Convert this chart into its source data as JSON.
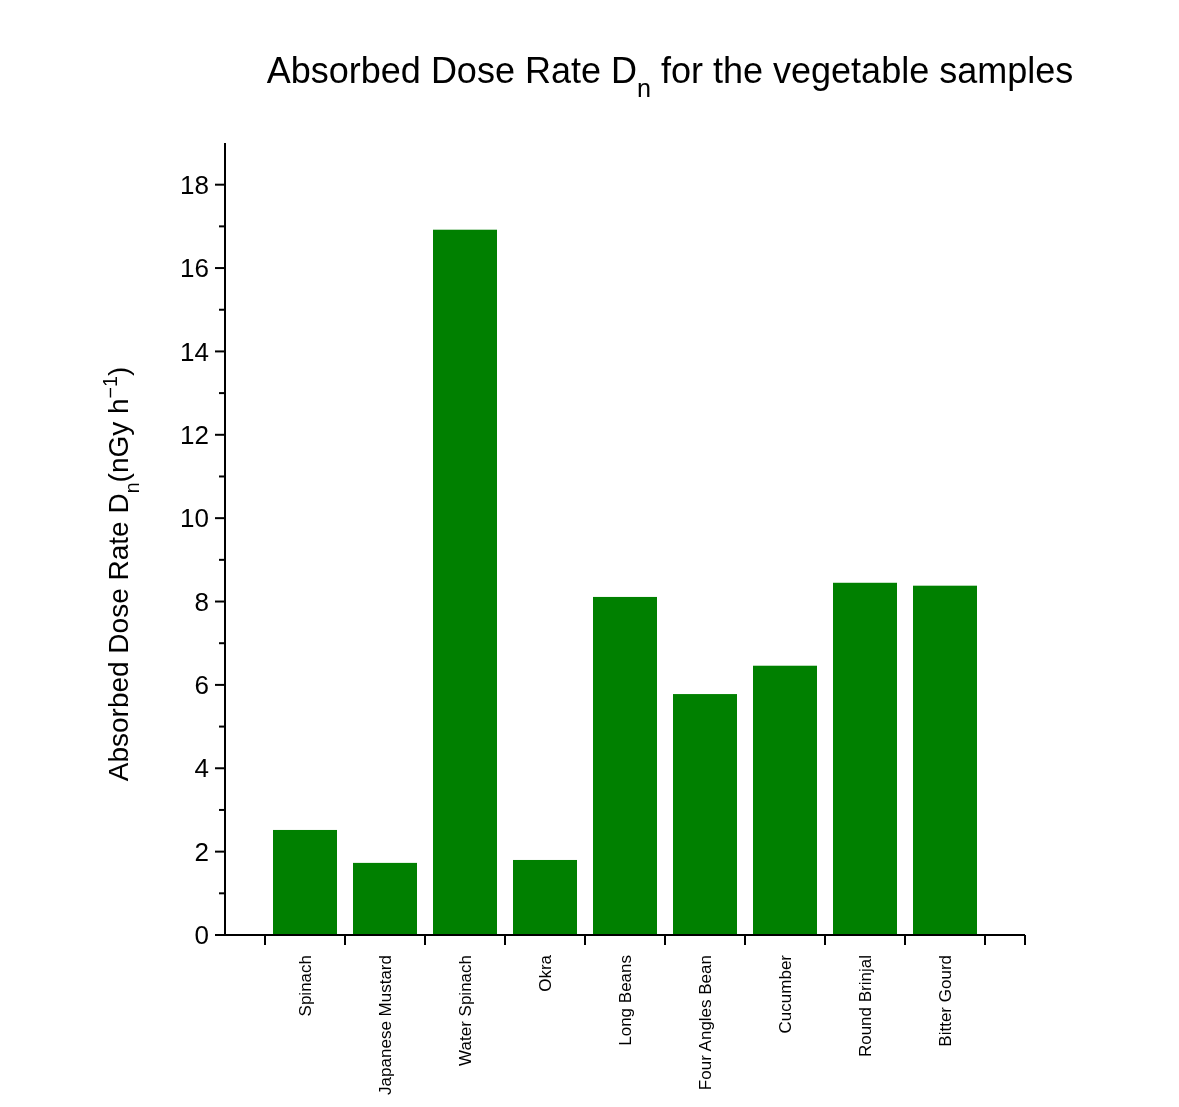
{
  "chart_data": {
    "type": "bar",
    "title": "Absorbed Dose Rate D$_{n}$ for the vegetable samples",
    "ylabel": "Absorbed Dose Rate D$_{n}$(nGy h$^{−1}$)",
    "categories": [
      "Spinach",
      "Japanese Mustard",
      "Water Spinach",
      "Okra",
      "Long Beans",
      "Four Angles Bean",
      "Cucumber",
      "Round Brinjal",
      "Bitter Gourd"
    ],
    "values": [
      2.52,
      1.73,
      16.92,
      1.8,
      8.11,
      5.78,
      6.46,
      8.45,
      8.38
    ],
    "color": "#008000",
    "ylim": [
      0,
      19
    ],
    "yticks": [
      0,
      2,
      4,
      6,
      8,
      10,
      12,
      14,
      16,
      18
    ]
  }
}
